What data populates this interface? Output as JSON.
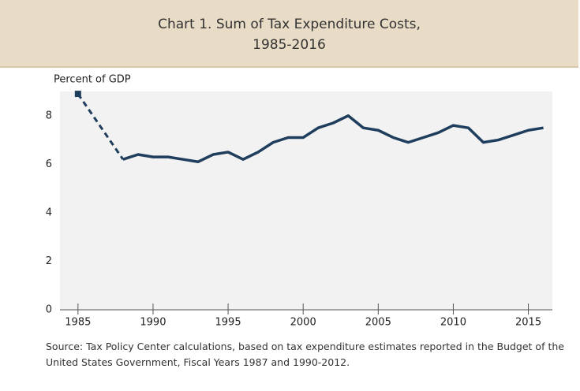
{
  "chart_data": {
    "type": "line",
    "title": "Chart 1. Sum of Tax Expenditure Costs,",
    "subtitle": "1985-2016",
    "y_label": "Percent of GDP",
    "source": "Source: Tax Policy Center calculations, based on tax expenditure estimates reported in the Budget of the United States Government, Fiscal Years 1987 and 1990-2012.",
    "x": [
      1985,
      1988,
      1989,
      1990,
      1991,
      1992,
      1993,
      1994,
      1995,
      1996,
      1997,
      1998,
      1999,
      2000,
      2001,
      2002,
      2003,
      2004,
      2005,
      2006,
      2007,
      2008,
      2009,
      2010,
      2011,
      2012,
      2013,
      2014,
      2015,
      2016
    ],
    "series": [
      {
        "color": "#1f3d5c",
        "values": [
          8.9,
          6.2,
          6.4,
          6.3,
          6.3,
          6.2,
          6.1,
          6.4,
          6.5,
          6.2,
          6.5,
          6.9,
          7.1,
          7.1,
          7.5,
          7.7,
          8.0,
          7.5,
          7.4,
          7.1,
          6.9,
          7.1,
          7.3,
          7.6,
          7.5,
          6.9,
          7.0,
          7.2,
          7.4,
          7.5
        ]
      }
    ],
    "gap_style": "dashed",
    "xlim": [
      1983.8,
      2016.6
    ],
    "xticks": [
      1985,
      1990,
      1995,
      2000,
      2005,
      2010,
      2015
    ],
    "ylim": [
      0,
      9
    ],
    "yticks": [
      0,
      2,
      4,
      6,
      8
    ]
  }
}
